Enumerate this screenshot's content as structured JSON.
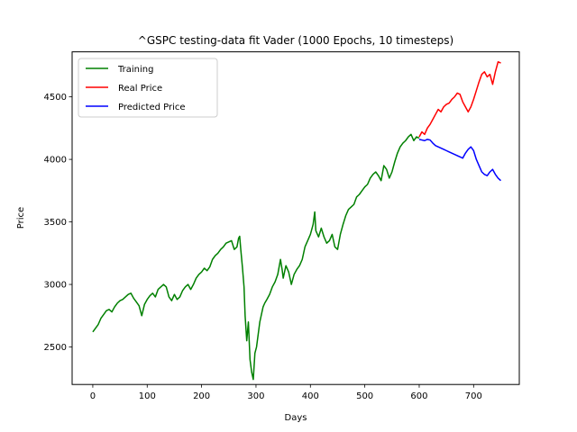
{
  "chart_data": {
    "type": "line",
    "title": "^GSPC testing-data fit Vader (1000 Epochs, 10 timesteps)",
    "xlabel": "Days",
    "ylabel": "Price",
    "xlim": [
      -38,
      784
    ],
    "ylim": [
      2200,
      4860
    ],
    "xticks": [
      0,
      100,
      200,
      300,
      400,
      500,
      600,
      700
    ],
    "yticks": [
      2500,
      3000,
      3500,
      4000,
      4500
    ],
    "grid": false,
    "legend_position": "top-left",
    "series": [
      {
        "name": "Training",
        "color": "#008000",
        "points": [
          [
            0,
            2620
          ],
          [
            5,
            2650
          ],
          [
            10,
            2680
          ],
          [
            15,
            2730
          ],
          [
            20,
            2760
          ],
          [
            25,
            2790
          ],
          [
            30,
            2800
          ],
          [
            35,
            2780
          ],
          [
            40,
            2820
          ],
          [
            45,
            2850
          ],
          [
            50,
            2870
          ],
          [
            55,
            2880
          ],
          [
            60,
            2900
          ],
          [
            65,
            2920
          ],
          [
            70,
            2930
          ],
          [
            75,
            2890
          ],
          [
            80,
            2860
          ],
          [
            85,
            2830
          ],
          [
            90,
            2750
          ],
          [
            95,
            2840
          ],
          [
            100,
            2880
          ],
          [
            105,
            2910
          ],
          [
            110,
            2930
          ],
          [
            115,
            2900
          ],
          [
            120,
            2960
          ],
          [
            125,
            2980
          ],
          [
            130,
            3000
          ],
          [
            135,
            2980
          ],
          [
            140,
            2900
          ],
          [
            145,
            2870
          ],
          [
            150,
            2920
          ],
          [
            155,
            2880
          ],
          [
            160,
            2900
          ],
          [
            165,
            2950
          ],
          [
            170,
            2980
          ],
          [
            175,
            3000
          ],
          [
            180,
            2960
          ],
          [
            185,
            3000
          ],
          [
            190,
            3050
          ],
          [
            195,
            3080
          ],
          [
            200,
            3100
          ],
          [
            205,
            3130
          ],
          [
            210,
            3110
          ],
          [
            215,
            3140
          ],
          [
            220,
            3200
          ],
          [
            225,
            3230
          ],
          [
            230,
            3250
          ],
          [
            235,
            3280
          ],
          [
            240,
            3300
          ],
          [
            245,
            3330
          ],
          [
            250,
            3340
          ],
          [
            255,
            3350
          ],
          [
            260,
            3280
          ],
          [
            265,
            3300
          ],
          [
            268,
            3370
          ],
          [
            270,
            3385
          ],
          [
            272,
            3280
          ],
          [
            275,
            3140
          ],
          [
            278,
            2980
          ],
          [
            280,
            2750
          ],
          [
            283,
            2550
          ],
          [
            286,
            2700
          ],
          [
            289,
            2400
          ],
          [
            292,
            2300
          ],
          [
            295,
            2240
          ],
          [
            298,
            2450
          ],
          [
            301,
            2500
          ],
          [
            304,
            2600
          ],
          [
            307,
            2700
          ],
          [
            310,
            2760
          ],
          [
            313,
            2820
          ],
          [
            316,
            2850
          ],
          [
            320,
            2880
          ],
          [
            325,
            2920
          ],
          [
            330,
            2980
          ],
          [
            335,
            3020
          ],
          [
            340,
            3080
          ],
          [
            345,
            3200
          ],
          [
            348,
            3120
          ],
          [
            350,
            3050
          ],
          [
            355,
            3150
          ],
          [
            360,
            3100
          ],
          [
            365,
            3000
          ],
          [
            370,
            3080
          ],
          [
            375,
            3120
          ],
          [
            380,
            3150
          ],
          [
            385,
            3200
          ],
          [
            390,
            3300
          ],
          [
            395,
            3350
          ],
          [
            400,
            3400
          ],
          [
            405,
            3480
          ],
          [
            408,
            3580
          ],
          [
            410,
            3430
          ],
          [
            415,
            3380
          ],
          [
            420,
            3450
          ],
          [
            425,
            3380
          ],
          [
            430,
            3330
          ],
          [
            435,
            3350
          ],
          [
            440,
            3400
          ],
          [
            445,
            3300
          ],
          [
            450,
            3280
          ],
          [
            455,
            3400
          ],
          [
            460,
            3480
          ],
          [
            465,
            3550
          ],
          [
            470,
            3600
          ],
          [
            475,
            3620
          ],
          [
            480,
            3640
          ],
          [
            485,
            3700
          ],
          [
            490,
            3720
          ],
          [
            495,
            3750
          ],
          [
            500,
            3780
          ],
          [
            505,
            3800
          ],
          [
            510,
            3850
          ],
          [
            515,
            3880
          ],
          [
            520,
            3900
          ],
          [
            525,
            3870
          ],
          [
            530,
            3830
          ],
          [
            535,
            3950
          ],
          [
            540,
            3920
          ],
          [
            545,
            3850
          ],
          [
            550,
            3900
          ],
          [
            555,
            3980
          ],
          [
            560,
            4050
          ],
          [
            565,
            4100
          ],
          [
            570,
            4130
          ],
          [
            575,
            4150
          ],
          [
            580,
            4180
          ],
          [
            585,
            4200
          ],
          [
            590,
            4150
          ],
          [
            595,
            4180
          ],
          [
            600,
            4170
          ]
        ]
      },
      {
        "name": "Real Price",
        "color": "#ff0000",
        "points": [
          [
            600,
            4180
          ],
          [
            605,
            4220
          ],
          [
            610,
            4200
          ],
          [
            615,
            4250
          ],
          [
            620,
            4280
          ],
          [
            625,
            4320
          ],
          [
            630,
            4360
          ],
          [
            635,
            4400
          ],
          [
            640,
            4380
          ],
          [
            645,
            4420
          ],
          [
            650,
            4440
          ],
          [
            655,
            4450
          ],
          [
            660,
            4480
          ],
          [
            665,
            4500
          ],
          [
            670,
            4530
          ],
          [
            675,
            4520
          ],
          [
            680,
            4460
          ],
          [
            685,
            4420
          ],
          [
            690,
            4380
          ],
          [
            695,
            4420
          ],
          [
            700,
            4480
          ],
          [
            705,
            4550
          ],
          [
            710,
            4620
          ],
          [
            715,
            4680
          ],
          [
            720,
            4700
          ],
          [
            725,
            4660
          ],
          [
            730,
            4680
          ],
          [
            735,
            4600
          ],
          [
            740,
            4700
          ],
          [
            745,
            4780
          ],
          [
            750,
            4770
          ]
        ]
      },
      {
        "name": "Predicted Price",
        "color": "#0000ff",
        "points": [
          [
            600,
            4160
          ],
          [
            605,
            4155
          ],
          [
            610,
            4150
          ],
          [
            615,
            4160
          ],
          [
            620,
            4155
          ],
          [
            625,
            4130
          ],
          [
            630,
            4110
          ],
          [
            635,
            4100
          ],
          [
            640,
            4090
          ],
          [
            645,
            4080
          ],
          [
            650,
            4070
          ],
          [
            655,
            4060
          ],
          [
            660,
            4050
          ],
          [
            665,
            4040
          ],
          [
            670,
            4030
          ],
          [
            675,
            4020
          ],
          [
            680,
            4010
          ],
          [
            685,
            4050
          ],
          [
            690,
            4080
          ],
          [
            695,
            4100
          ],
          [
            700,
            4070
          ],
          [
            705,
            4000
          ],
          [
            710,
            3950
          ],
          [
            715,
            3900
          ],
          [
            720,
            3880
          ],
          [
            725,
            3870
          ],
          [
            730,
            3900
          ],
          [
            735,
            3920
          ],
          [
            740,
            3880
          ],
          [
            745,
            3850
          ],
          [
            750,
            3830
          ]
        ]
      }
    ]
  }
}
